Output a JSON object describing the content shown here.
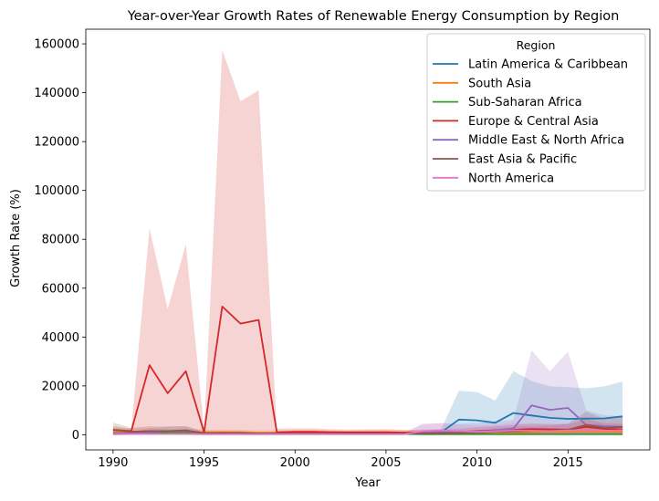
{
  "chart_data": {
    "type": "line",
    "title": "Year-over-Year Growth Rates of Renewable Energy Consumption by Region",
    "xlabel": "Year",
    "ylabel": "Growth Rate (%)",
    "xlim": [
      1988.5,
      2019.5
    ],
    "ylim": [
      -6200,
      166000
    ],
    "x_ticks": [
      1990,
      1995,
      2000,
      2005,
      2010,
      2015
    ],
    "y_ticks": [
      0,
      20000,
      40000,
      60000,
      80000,
      100000,
      120000,
      140000,
      160000
    ],
    "grid": false,
    "legend": {
      "title": "Region",
      "placement": "top-right"
    },
    "series": [
      {
        "name": "Latin America & Caribbean",
        "color": "#1f77b4",
        "x": [
          2007,
          2008,
          2009,
          2010,
          2011,
          2012,
          2013,
          2014,
          2015,
          2016,
          2017,
          2018
        ],
        "y": [
          500,
          800,
          6200,
          5900,
          4900,
          8900,
          7900,
          6900,
          6500,
          6600,
          6700,
          7500
        ],
        "lower": [
          0,
          0,
          0,
          0,
          0,
          0,
          0,
          0,
          0,
          0,
          0,
          0
        ],
        "upper": [
          1500,
          1800,
          18000,
          17500,
          14000,
          26000,
          22000,
          19800,
          19500,
          19000,
          19800,
          21800
        ]
      },
      {
        "name": "South Asia",
        "color": "#ff7f0e",
        "x": [
          1990,
          1991,
          1992,
          1993,
          1994,
          1995,
          1996,
          1997,
          1998,
          1999,
          2000,
          2001,
          2002,
          2003,
          2004,
          2005,
          2006,
          2007,
          2008,
          2009,
          2010,
          2011,
          2012,
          2013,
          2014,
          2015,
          2016,
          2017,
          2018
        ],
        "y": [
          1500,
          1200,
          1400,
          1000,
          1200,
          900,
          1000,
          900,
          800,
          800,
          900,
          900,
          800,
          800,
          900,
          1000,
          900,
          800,
          700,
          800,
          800,
          900,
          900,
          1000,
          1100,
          1200,
          1300,
          1200,
          1200
        ],
        "lower": [
          0,
          0,
          0,
          0,
          0,
          0,
          0,
          0,
          0,
          0,
          0,
          0,
          0,
          0,
          0,
          0,
          0,
          0,
          0,
          0,
          0,
          0,
          0,
          0,
          0,
          0,
          0,
          0,
          0
        ],
        "upper": [
          3000,
          2500,
          2800,
          2200,
          2500,
          2000,
          2100,
          2000,
          1800,
          1800,
          2000,
          2000,
          1800,
          1800,
          2000,
          2200,
          2000,
          1800,
          1600,
          1800,
          1800,
          2000,
          2000,
          2200,
          2400,
          2600,
          2800,
          2600,
          2600
        ]
      },
      {
        "name": "Sub-Saharan Africa",
        "color": "#2ca02c",
        "x": [
          1990,
          1991,
          1992,
          1993,
          1994,
          1995,
          1996,
          1997,
          1998,
          1999,
          2000,
          2001,
          2002,
          2003,
          2004,
          2005,
          2006,
          2007,
          2008,
          2009,
          2010,
          2011,
          2012,
          2013,
          2014,
          2015,
          2016,
          2017,
          2018
        ],
        "y": [
          600,
          600,
          700,
          800,
          800,
          600,
          500,
          500,
          400,
          400,
          400,
          400,
          300,
          300,
          300,
          300,
          300,
          200,
          200,
          200,
          200,
          200,
          200,
          200,
          200,
          200,
          200,
          200,
          200
        ],
        "lower": [
          0,
          0,
          0,
          0,
          0,
          0,
          0,
          0,
          0,
          0,
          0,
          0,
          0,
          0,
          0,
          0,
          0,
          0,
          0,
          0,
          0,
          0,
          0,
          0,
          0,
          0,
          0,
          0,
          0
        ],
        "upper": [
          1500,
          1500,
          1700,
          1800,
          1800,
          1500,
          1300,
          1300,
          1100,
          1100,
          1100,
          1100,
          900,
          900,
          900,
          900,
          900,
          700,
          700,
          700,
          700,
          700,
          700,
          700,
          700,
          700,
          700,
          700,
          700
        ]
      },
      {
        "name": "Europe & Central Asia",
        "color": "#d62728",
        "x": [
          1990,
          1991,
          1992,
          1993,
          1994,
          1995,
          1996,
          1997,
          1998,
          1999,
          2000,
          2001,
          2002,
          2003,
          2004,
          2005,
          2006,
          2007,
          2008,
          2009,
          2010,
          2011,
          2012,
          2013,
          2014,
          2015,
          2016,
          2017,
          2018
        ],
        "y": [
          2000,
          1500,
          28500,
          17000,
          26000,
          1000,
          52500,
          45500,
          47000,
          1000,
          1200,
          1200,
          1100,
          1000,
          1000,
          1000,
          900,
          1000,
          1100,
          1200,
          1500,
          1800,
          2000,
          2300,
          2200,
          2100,
          3200,
          2400,
          2200
        ],
        "lower": [
          0,
          0,
          0,
          0,
          0,
          0,
          0,
          0,
          0,
          0,
          0,
          0,
          0,
          0,
          0,
          0,
          0,
          0,
          0,
          0,
          0,
          0,
          0,
          0,
          0,
          0,
          0,
          0,
          0
        ],
        "upper": [
          3500,
          2500,
          84500,
          51500,
          78000,
          2000,
          157500,
          136500,
          141000,
          2500,
          2600,
          2600,
          2300,
          2100,
          2200,
          2200,
          1900,
          2100,
          2300,
          2500,
          3100,
          3600,
          4000,
          4600,
          4400,
          4200,
          6400,
          4800,
          4400
        ]
      },
      {
        "name": "Middle East & North Africa",
        "color": "#9467bd",
        "x": [
          1990,
          1991,
          1992,
          1993,
          1994,
          1995,
          1996,
          1997,
          1998,
          1999,
          2000,
          2001,
          2002,
          2003,
          2004,
          2005,
          2006,
          2007,
          2008,
          2009,
          2010,
          2011,
          2012,
          2013,
          2014,
          2015,
          2016,
          2017,
          2018
        ],
        "y": [
          500,
          600,
          1000,
          1500,
          1500,
          400,
          400,
          400,
          300,
          300,
          300,
          300,
          300,
          300,
          300,
          300,
          300,
          1200,
          1200,
          1100,
          1200,
          1800,
          2500,
          12000,
          10200,
          11000,
          4000,
          3500,
          3200
        ],
        "lower": [
          0,
          0,
          0,
          0,
          0,
          0,
          0,
          0,
          0,
          0,
          0,
          0,
          0,
          0,
          0,
          0,
          0,
          0,
          0,
          0,
          0,
          0,
          0,
          0,
          0,
          0,
          0,
          0,
          0
        ],
        "upper": [
          1200,
          1400,
          2500,
          3500,
          3500,
          1000,
          1000,
          1000,
          800,
          800,
          800,
          800,
          800,
          800,
          800,
          800,
          800,
          4500,
          4800,
          4500,
          4800,
          5500,
          6000,
          34500,
          26000,
          34000,
          10000,
          8000,
          7500
        ]
      },
      {
        "name": "East Asia & Pacific",
        "color": "#8c564b",
        "x": [
          1990,
          1991,
          1992,
          1993,
          1994,
          1995,
          1996,
          1997,
          1998,
          1999,
          2000,
          2001,
          2002,
          2003,
          2004,
          2005,
          2006,
          2007,
          2008,
          2009,
          2010,
          2011,
          2012,
          2013,
          2014,
          2015,
          2016,
          2017,
          2018
        ],
        "y": [
          2000,
          1200,
          1500,
          1500,
          1800,
          600,
          700,
          700,
          500,
          600,
          500,
          500,
          500,
          500,
          500,
          500,
          500,
          500,
          600,
          700,
          800,
          1200,
          1400,
          1500,
          1600,
          2000,
          4000,
          2800,
          3200
        ],
        "lower": [
          0,
          0,
          0,
          0,
          0,
          0,
          0,
          0,
          0,
          0,
          0,
          0,
          0,
          0,
          0,
          0,
          0,
          0,
          0,
          0,
          0,
          0,
          0,
          0,
          0,
          0,
          0,
          0,
          0
        ],
        "upper": [
          5000,
          2800,
          3500,
          3200,
          3500,
          1500,
          1600,
          1600,
          1200,
          1300,
          1200,
          1200,
          1200,
          1200,
          1200,
          1200,
          1200,
          1200,
          1400,
          1600,
          1800,
          2800,
          3200,
          3500,
          3700,
          4500,
          9500,
          6500,
          7000
        ]
      },
      {
        "name": "North America",
        "color": "#e377c2",
        "x": [
          1990,
          1991,
          1992,
          1993,
          1994,
          1995,
          1996,
          1997,
          1998,
          1999,
          2000,
          2001,
          2002,
          2003,
          2004,
          2005,
          2006,
          2007,
          2008,
          2009,
          2010,
          2011,
          2012,
          2013,
          2014,
          2015,
          2016,
          2017,
          2018
        ],
        "y": [
          200,
          300,
          300,
          300,
          300,
          200,
          200,
          200,
          200,
          200,
          200,
          200,
          200,
          200,
          200,
          200,
          200,
          1500,
          1800,
          1500,
          1200,
          1400,
          1800,
          1600,
          1500,
          1800,
          1800,
          1700,
          1800
        ],
        "lower": [
          0,
          0,
          0,
          0,
          0,
          0,
          0,
          0,
          0,
          0,
          0,
          0,
          0,
          0,
          0,
          0,
          0,
          0,
          0,
          0,
          0,
          0,
          0,
          0,
          0,
          0,
          0,
          0,
          0
        ],
        "upper": [
          600,
          800,
          800,
          800,
          800,
          600,
          600,
          600,
          600,
          600,
          600,
          600,
          600,
          600,
          600,
          600,
          600,
          4200,
          4800,
          4200,
          3600,
          4000,
          4800,
          4400,
          4200,
          4800,
          4800,
          4600,
          4800
        ]
      }
    ]
  }
}
